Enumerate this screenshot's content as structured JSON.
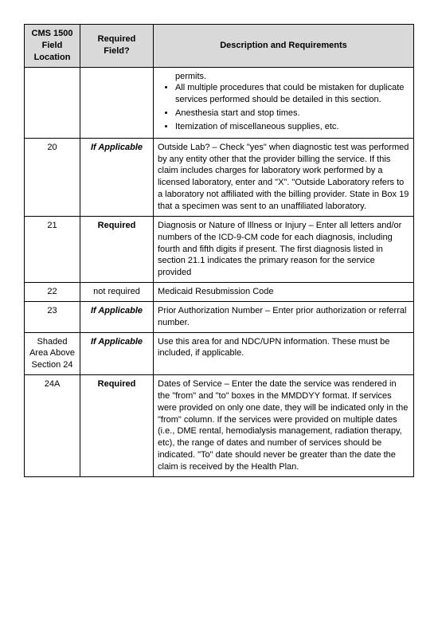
{
  "headers": {
    "col1": "CMS 1500 Field Location",
    "col2": "Required Field?",
    "col3": "Description and Requirements"
  },
  "rows": {
    "r0": {
      "loc": "",
      "req": "",
      "b0": "permits.",
      "b1": "All multiple procedures that could be mistaken for duplicate services performed should be detailed in this section.",
      "b2": "Anesthesia start and stop times.",
      "b3": "Itemization of miscellaneous supplies, etc."
    },
    "r1": {
      "loc": "20",
      "req": "If Applicable",
      "desc": "Outside Lab? – Check \"yes\" when diagnostic test was performed by any entity other that the provider billing the service. If this claim includes charges for laboratory work performed by a licensed laboratory, enter and \"X\". \"Outside Laboratory refers to a laboratory not affiliated with the billing provider. State in Box 19 that a specimen was sent to an unaffiliated laboratory."
    },
    "r2": {
      "loc": "21",
      "req": "Required",
      "desc": "Diagnosis or Nature of Illness or Injury – Enter all letters and/or numbers of the ICD-9-CM code for each diagnosis, including fourth and fifth digits if present. The first diagnosis listed in section 21.1 indicates the primary reason for the service provided"
    },
    "r3": {
      "loc": "22",
      "req": "not required",
      "desc": "Medicaid Resubmission Code"
    },
    "r4": {
      "loc": "23",
      "req": "If Applicable",
      "desc": "Prior Authorization Number – Enter prior authorization or referral number."
    },
    "r5": {
      "loc": "Shaded Area Above Section 24",
      "req": "If Applicable",
      "desc": "Use this area for and NDC/UPN information. These must be included, if applicable."
    },
    "r6": {
      "loc": "24A",
      "req": "Required",
      "desc": "Dates of Service – Enter the date the service was rendered in the \"from\" and \"to\" boxes in the MMDDYY format.  If services were provided on only one date, they will be indicated only in the \"from\" column.  If the services were provided on multiple dates (i.e., DME rental, hemodialysis management, radiation therapy, etc), the range of dates and number of services should be indicated.  \"To\" date should never be greater than the date the claim is received by the Health Plan."
    }
  },
  "styling": {
    "header_bg": "#d9d9d9",
    "border_color": "#000000",
    "font_size": 11,
    "page_bg": "#ffffff"
  }
}
